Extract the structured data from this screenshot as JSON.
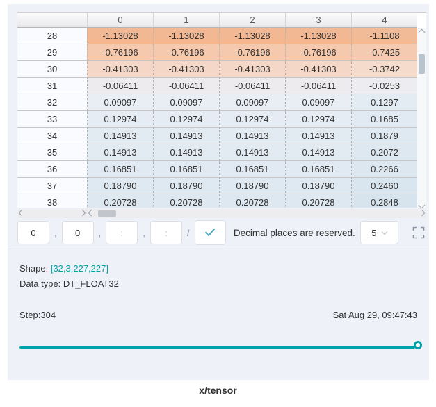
{
  "table": {
    "columns": [
      "",
      "0",
      "1",
      "2",
      "3",
      "4"
    ],
    "rows": [
      {
        "label": "28",
        "values": [
          "-1.13028",
          "-1.13028",
          "-1.13028",
          "-1.13028",
          "-1.1108"
        ],
        "color": "#f2b793",
        "last_color": "#f2bb98"
      },
      {
        "label": "29",
        "values": [
          "-0.76196",
          "-0.76196",
          "-0.76196",
          "-0.76196",
          "-0.7425"
        ],
        "color": "#f4c9ad",
        "last_color": "#f4cbb1"
      },
      {
        "label": "30",
        "values": [
          "-0.41303",
          "-0.41303",
          "-0.41303",
          "-0.41303",
          "-0.3742"
        ],
        "color": "#f4d7c6",
        "last_color": "#f5dbcc"
      },
      {
        "label": "31",
        "values": [
          "-0.06411",
          "-0.06411",
          "-0.06411",
          "-0.06411",
          "-0.0253"
        ],
        "color": "#eeebee",
        "last_color": "#edecf0"
      },
      {
        "label": "32",
        "values": [
          "0.09097",
          "0.09097",
          "0.09097",
          "0.09097",
          "0.1297"
        ],
        "color": "#e8eef4",
        "last_color": "#e4ecf3"
      },
      {
        "label": "33",
        "values": [
          "0.12974",
          "0.12974",
          "0.12974",
          "0.12974",
          "0.1685"
        ],
        "color": "#e5ecf3",
        "last_color": "#e1eaf2"
      },
      {
        "label": "34",
        "values": [
          "0.14913",
          "0.14913",
          "0.14913",
          "0.14913",
          "0.1879"
        ],
        "color": "#e3ebf2",
        "last_color": "#dfe9f1"
      },
      {
        "label": "35",
        "values": [
          "0.14913",
          "0.14913",
          "0.14913",
          "0.14913",
          "0.2072"
        ],
        "color": "#e3ebf2",
        "last_color": "#dee8f0"
      },
      {
        "label": "36",
        "values": [
          "0.16851",
          "0.16851",
          "0.16851",
          "0.16851",
          "0.2266"
        ],
        "color": "#e1eaf2",
        "last_color": "#dce7f0"
      },
      {
        "label": "37",
        "values": [
          "0.18790",
          "0.18790",
          "0.18790",
          "0.18790",
          "0.2460"
        ],
        "color": "#dfe9f1",
        "last_color": "#dae6ef"
      },
      {
        "label": "38",
        "values": [
          "0.20728",
          "0.20728",
          "0.20728",
          "0.20728",
          "0.2848"
        ],
        "color": "#dde8f0",
        "last_color": "#d7e4ee"
      }
    ]
  },
  "controls": {
    "dim_input_1": {
      "value": "0"
    },
    "dim_input_2": {
      "value": "0"
    },
    "dim_input_3": {
      "placeholder": ":"
    },
    "dim_input_4": {
      "placeholder": ":"
    },
    "separator": ",",
    "slash": "/",
    "note": "Decimal places are reserved.",
    "decimal_select": {
      "value": "5"
    }
  },
  "info": {
    "shape_label": "Shape: ",
    "shape_value": "[32,3,227,227]",
    "dtype": "Data type: DT_FLOAT32",
    "step": "Step:304",
    "timestamp": "Sat Aug 29, 09:47:43"
  },
  "footer": {
    "title": "x/tensor"
  },
  "colors": {
    "accent_teal": "#00a5a7",
    "negative_strong": "#f2b793",
    "positive_strong": "#d7e4ee",
    "panel_bg": "#eef1f8"
  }
}
